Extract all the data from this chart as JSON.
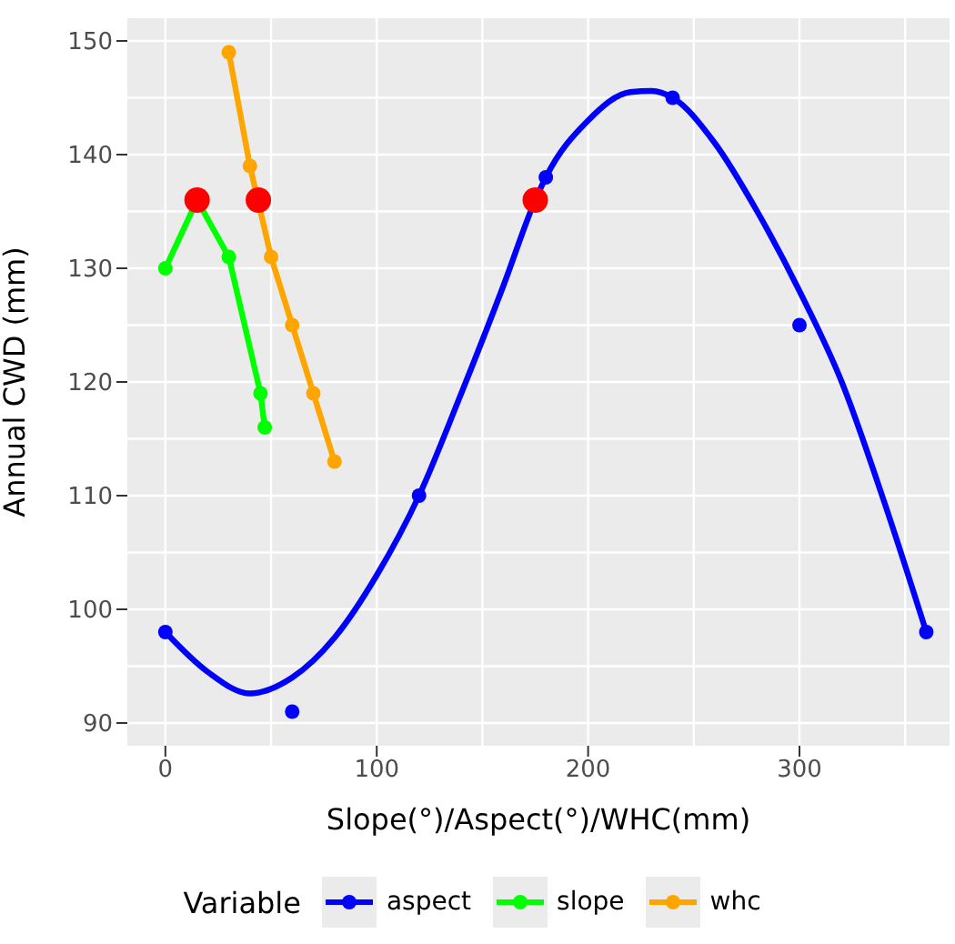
{
  "chart_data": {
    "type": "line",
    "xlabel": "Slope(°)/Aspect(°)/WHC(mm)",
    "ylabel": "Annual CWD (mm)",
    "legend_title": "Variable",
    "legend": "bottom",
    "grid": true,
    "marker": "circle",
    "xlim": [
      -18,
      371
    ],
    "ylim": [
      88,
      152
    ],
    "xticks": [
      0,
      100,
      200,
      300
    ],
    "yticks": [
      90,
      100,
      110,
      120,
      130,
      140,
      150
    ],
    "series": [
      {
        "name": "aspect",
        "type": "scatter",
        "color": "#0000ff",
        "x": [
          0,
          60,
          120,
          180,
          240,
          300,
          360
        ],
        "values": [
          98,
          91,
          110,
          138,
          145,
          125,
          98
        ]
      },
      {
        "marker": "none",
        "color": "#0000ff",
        "x": [
          0,
          20,
          40,
          60,
          80,
          100,
          120,
          140,
          160,
          175,
          180,
          200,
          220,
          230,
          240,
          260,
          280,
          300,
          320,
          340,
          360
        ],
        "values": [
          98,
          94.5,
          92.6,
          94,
          97.5,
          103,
          110,
          119,
          128.5,
          136,
          138,
          143,
          145.5,
          145.6,
          145,
          141,
          135,
          128,
          120,
          109.5,
          98
        ]
      },
      {
        "name": "slope",
        "color": "#00ff00",
        "x": [
          0,
          15,
          30,
          45,
          47
        ],
        "values": [
          130,
          136,
          131,
          119,
          116
        ]
      },
      {
        "name": "whc",
        "color": "#ffa500",
        "x": [
          30,
          40,
          50,
          60,
          70,
          80
        ],
        "values": [
          149,
          139,
          131,
          125,
          119,
          113
        ]
      },
      {
        "type": "scatter",
        "color": "#ff0000",
        "x": [
          15,
          44,
          175
        ],
        "values": [
          136,
          136,
          136
        ]
      }
    ]
  }
}
